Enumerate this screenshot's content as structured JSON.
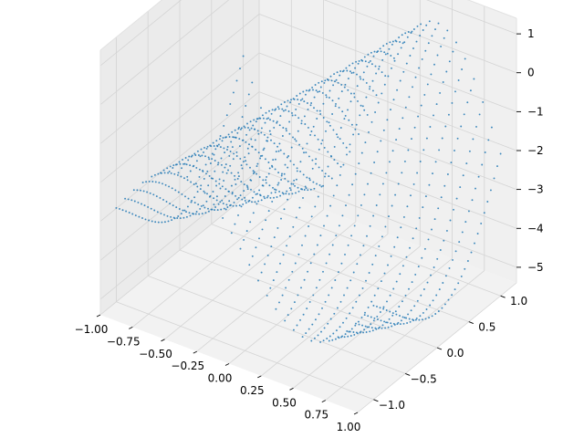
{
  "chart_data": {
    "type": "scatter",
    "projection": "3d",
    "title": "",
    "xlabel": "",
    "ylabel": "",
    "zlabel": "",
    "xlim": [
      -1.0,
      1.0
    ],
    "ylim": [
      -1.25,
      1.25
    ],
    "zlim": [
      -5.4,
      1.4
    ],
    "x_ticks": [
      "−1.00",
      "−0.75",
      "−0.50",
      "−0.25",
      "0.00",
      "0.25",
      "0.50",
      "0.75",
      "1.00"
    ],
    "y_ticks": [
      "−1.0",
      "−0.5",
      "0.0",
      "0.5",
      "1.0"
    ],
    "z_ticks": [
      "−5",
      "−4",
      "−3",
      "−2",
      "−1",
      "0",
      "1"
    ],
    "grid": true,
    "marker_color": "#1f77b4",
    "surface": {
      "x_range": [
        -1.0,
        1.0
      ],
      "y_range": [
        -1.0,
        1.0
      ],
      "x_count": 30,
      "y_count": 40,
      "z_peak": 1.0,
      "z_floor": -4.5,
      "ridge_shift": 0.5
    }
  }
}
